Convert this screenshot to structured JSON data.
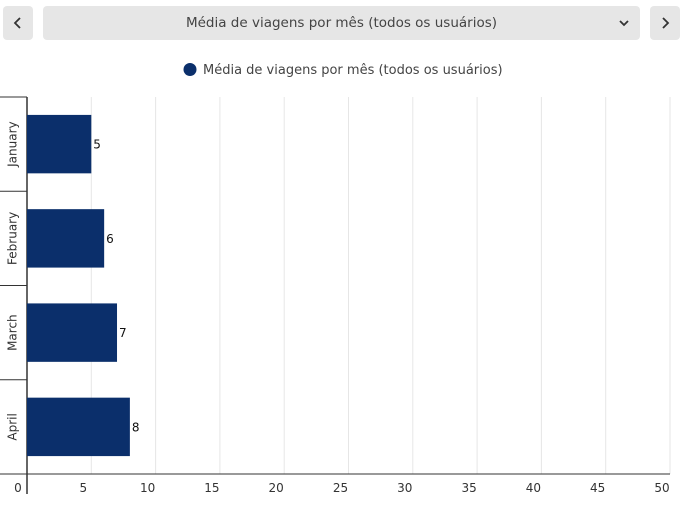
{
  "toolbar": {
    "selected_metric": "Média de viagens por mês (todos os usuários)",
    "prev_icon": "chevron-left-icon",
    "next_icon": "chevron-right-icon",
    "dropdown_icon": "chevron-down-icon"
  },
  "chart_data": {
    "type": "bar",
    "orientation": "horizontal",
    "title": "",
    "xlabel": "",
    "ylabel": "",
    "categories": [
      "January",
      "February",
      "March",
      "April"
    ],
    "series": [
      {
        "name": "Média de viagens por mês (todos os usuários)",
        "values": [
          5,
          6,
          7,
          8
        ],
        "color": "#0b2f6b"
      }
    ],
    "xlim": [
      0,
      50
    ],
    "xticks": [
      0,
      5,
      10,
      15,
      20,
      25,
      30,
      35,
      40,
      45,
      50
    ],
    "grid": true,
    "legend_position": "top-center",
    "data_labels": true
  }
}
